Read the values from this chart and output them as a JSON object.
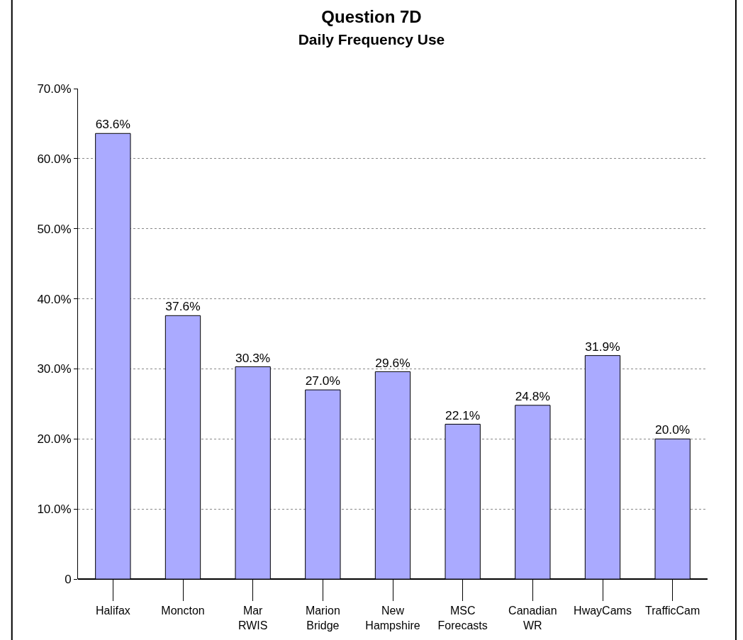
{
  "chart_data": {
    "type": "bar",
    "title": "Question 7D",
    "subtitle": "Daily Frequency Use",
    "categories": [
      "Halifax",
      "Moncton",
      "Mar RWIS",
      "Marion Bridge",
      "New Hampshire",
      "MSC Forecasts",
      "Canadian WR",
      "HwayCams",
      "TrafficCam"
    ],
    "values": [
      63.6,
      37.6,
      30.3,
      27.0,
      29.6,
      22.1,
      24.8,
      31.9,
      20.0
    ],
    "value_labels": [
      "63.6%",
      "37.6%",
      "30.3%",
      "27.0%",
      "29.6%",
      "22.1%",
      "24.8%",
      "31.9%",
      "20.0%"
    ],
    "color": "#aaaaff",
    "ylim": [
      0,
      70
    ],
    "yticks": [
      0,
      {
        "value": 10,
        "label": "10.0%"
      },
      {
        "value": 20,
        "label": "20.0%"
      },
      {
        "value": 30,
        "label": "30.0%"
      },
      {
        "value": 40,
        "label": "40.0%"
      },
      {
        "value": 50,
        "label": "50.0%"
      },
      {
        "value": 60,
        "label": "60.0%"
      },
      {
        "value": 70,
        "label": "70.0%"
      }
    ],
    "grid": "y",
    "legend": false
  }
}
